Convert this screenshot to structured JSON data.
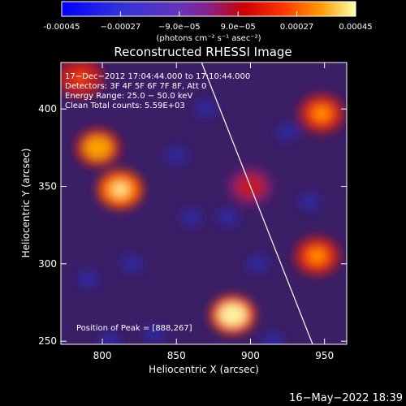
{
  "chart_data": {
    "type": "heatmap",
    "title": "Reconstructed RHESSI Image",
    "xlabel": "Heliocentric X (arcsec)",
    "ylabel": "Heliocentric Y (arcsec)",
    "xlim": [
      772,
      965
    ],
    "ylim": [
      248,
      430
    ],
    "x_ticks": [
      800,
      850,
      900,
      950
    ],
    "y_ticks": [
      250,
      300,
      350,
      400
    ],
    "colorbar": {
      "range": [
        -0.00045,
        0.00045
      ],
      "tick_values": [
        -0.00045,
        -0.00027,
        -9e-05,
        9e-05,
        0.00027,
        0.00045
      ],
      "tick_labels": [
        "-0.00045",
        "−0.00027",
        "−9.0e−05",
        "9.0e−05",
        "0.00027",
        "0.00045"
      ],
      "unit_label": "(photons cm⁻² s⁻¹ asec⁻²)"
    },
    "info_lines": [
      "17−Dec−2012 17:04:44.000 to 17:10:44.000",
      "Detectors: 3F 4F 5F 6F 7F 8F, Att 0",
      "Energy Range: 25.0 − 50.0 keV",
      "Clean     Total counts: 5.59E+03"
    ],
    "peak_label": "Position of Peak = [888,267]",
    "peak": [
      888,
      267
    ],
    "limb_line": [
      [
        867,
        430
      ],
      [
        942,
        248
      ]
    ],
    "bright_sources": [
      {
        "x": 812,
        "y": 348,
        "value": 0.0004
      },
      {
        "x": 797,
        "y": 375,
        "value": 0.00036
      },
      {
        "x": 888,
        "y": 267,
        "value": 0.00045
      },
      {
        "x": 948,
        "y": 397,
        "value": 0.00032
      },
      {
        "x": 945,
        "y": 305,
        "value": 0.0003
      },
      {
        "x": 900,
        "y": 350,
        "value": 0.0002
      },
      {
        "x": 785,
        "y": 420,
        "value": 0.00022
      }
    ]
  },
  "footer": {
    "timestamp": "16−May−2022 18:39"
  }
}
